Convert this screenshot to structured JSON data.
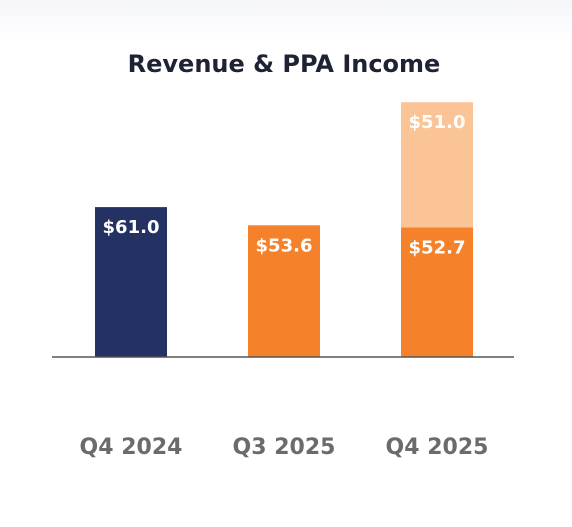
{
  "chart_data": {
    "type": "bar",
    "stacked": true,
    "title": "Revenue & PPA Income",
    "categories": [
      "Q4 2024",
      "Q3 2025",
      "Q4 2025"
    ],
    "series": [
      {
        "values": [
          61.0,
          53.6,
          52.7
        ],
        "labels": [
          "$61.0",
          "$53.6",
          "$52.7"
        ],
        "colors": [
          "#233163",
          "#f5822a",
          "#f5822a"
        ]
      },
      {
        "values": [
          0,
          0,
          51.0
        ],
        "labels": [
          "",
          "",
          "$51.0"
        ],
        "colors": [
          "#fbc496",
          "#fbc496",
          "#fbc496"
        ]
      }
    ],
    "ylim": [
      0,
      105
    ],
    "grid": false,
    "legend": "none",
    "colors": {
      "title": "#1f2233",
      "tick_label": "#6b6b6b",
      "bar_label": "#ffffff",
      "baseline": "#555555"
    }
  }
}
